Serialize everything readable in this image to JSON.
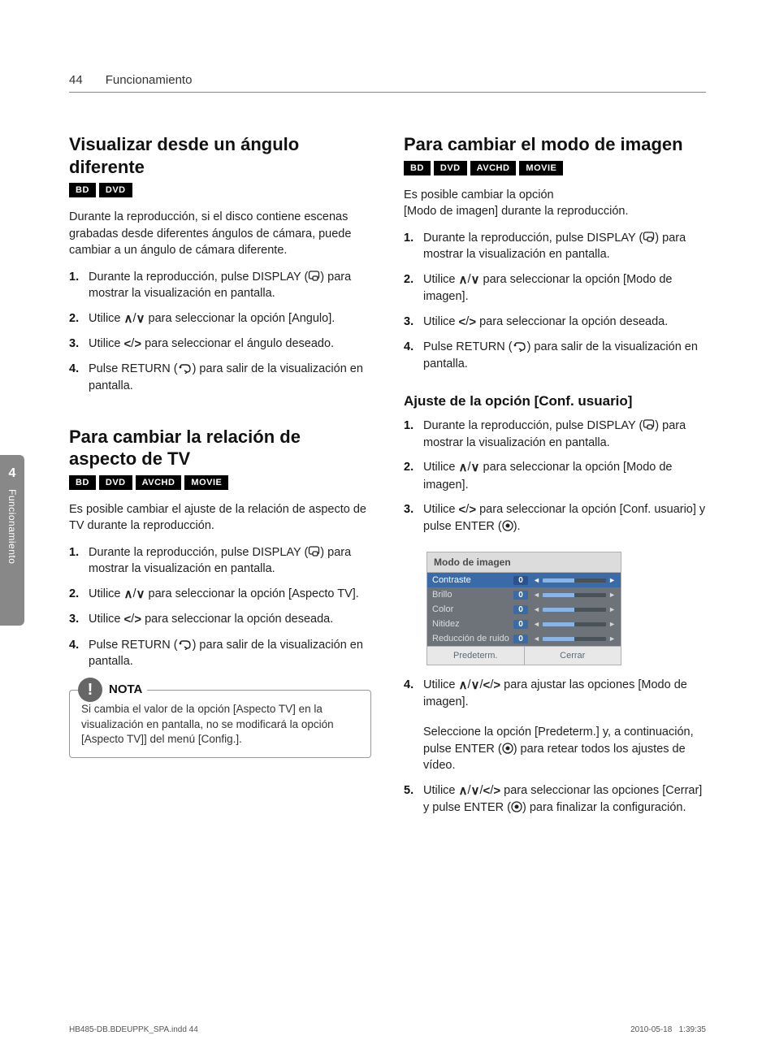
{
  "page": {
    "number": "44",
    "section": "Funcionamiento"
  },
  "sidebar": {
    "chapter": "4",
    "label": "Funcionamiento"
  },
  "badges_full": [
    "BD",
    "DVD",
    "AVCHD",
    "MOVIE"
  ],
  "badges_disc": [
    "BD",
    "DVD"
  ],
  "left": {
    "sec1": {
      "title": "Visualizar desde un ángulo diferente",
      "intro": "Durante la reproducción, si el disco contiene escenas grabadas desde diferentes ángulos de cámara, puede cambiar a un ángulo de cámara diferente.",
      "steps": {
        "s1a": "Durante la reproducción, pulse DISPLAY (",
        "s1b": ") para mostrar la visualización en pantalla.",
        "s2a": "Utilice ",
        "s2mid": "/",
        "s2b": " para seleccionar la opción [Angulo].",
        "s3a": "Utilice ",
        "s3mid": "/",
        "s3b": " para seleccionar el ángulo deseado.",
        "s4a": "Pulse RETURN (",
        "s4b": ") para salir de la visualización en pantalla."
      }
    },
    "sec2": {
      "title": "Para cambiar la relación de aspecto de TV",
      "intro": "Es posible cambiar el ajuste de la relación de aspecto de TV durante la reproducción.",
      "steps": {
        "s1a": "Durante la reproducción, pulse DISPLAY (",
        "s1b": ") para mostrar la visualización en pantalla.",
        "s2a": "Utilice ",
        "s2mid": "/",
        "s2b": " para seleccionar la opción [Aspecto TV].",
        "s3a": "Utilice ",
        "s3mid": "/",
        "s3b": " para seleccionar la opción deseada.",
        "s4a": "Pulse RETURN (",
        "s4b": ") para salir de la visualización en pantalla."
      }
    },
    "note": {
      "label": "NOTA",
      "text": "Si cambia el valor de la opción [Aspecto TV] en la visualización en pantalla, no se modificará la opción [Aspecto TV]] del menú [Config.]."
    }
  },
  "right": {
    "sec1": {
      "title": "Para cambiar el modo de imagen",
      "intro": "Es posible cambiar la opción\n[Modo de imagen] durante la reproducción.",
      "steps": {
        "s1a": "Durante la reproducción, pulse DISPLAY (",
        "s1b": ") para mostrar la visualización en pantalla.",
        "s2a": "Utilice ",
        "s2mid": "/",
        "s2b": " para seleccionar la opción [Modo de imagen].",
        "s3a": "Utilice ",
        "s3mid": "/",
        "s3b": " para seleccionar la opción deseada.",
        "s4a": "Pulse RETURN (",
        "s4b": ") para salir de la visualización en pantalla."
      }
    },
    "sec2": {
      "title": "Ajuste de la opción [Conf. usuario]",
      "steps": {
        "s1a": "Durante la reproducción, pulse DISPLAY (",
        "s1b": ") para mostrar la visualización en pantalla.",
        "s2a": "Utilice ",
        "s2mid": "/",
        "s2b": " para seleccionar la opción [Modo de imagen].",
        "s3a": "Utilice ",
        "s3mid": "/",
        "s3b": " para seleccionar la opción [Conf. usuario] y pulse ENTER (",
        "s3c": ").",
        "s4a": "Utilice ",
        "s4mid1": "/",
        "s4mid2": "/",
        "s4mid3": "/",
        "s4b": " para ajustar las opciones [Modo de imagen].",
        "s4sub": "Seleccione la opción [Predeterm.] y, a continuación, pulse ENTER (",
        "s4subb": ") para retear todos los ajustes de vídeo.",
        "s5a": "Utilice ",
        "s5mid1": "/",
        "s5mid2": "/",
        "s5mid3": "/",
        "s5b": " para seleccionar las opciones [Cerrar] y pulse ENTER (",
        "s5c": ") para finalizar la configuración."
      }
    }
  },
  "panel": {
    "title": "Modo de imagen",
    "rows": [
      {
        "label": "Contraste",
        "value": "0"
      },
      {
        "label": "Brillo",
        "value": "0"
      },
      {
        "label": "Color",
        "value": "0"
      },
      {
        "label": "Nitidez",
        "value": "0"
      },
      {
        "label": "Reducción de ruido",
        "value": "0"
      }
    ],
    "footer": {
      "left": "Predeterm.",
      "right": "Cerrar"
    }
  },
  "footer": {
    "file": "HB485-DB.BDEUPPK_SPA.indd   44",
    "date": "2010-05-18",
    "time": "1:39:35"
  },
  "icons": {
    "up": "∧",
    "down": "∨",
    "left": "<",
    "right": ">"
  }
}
